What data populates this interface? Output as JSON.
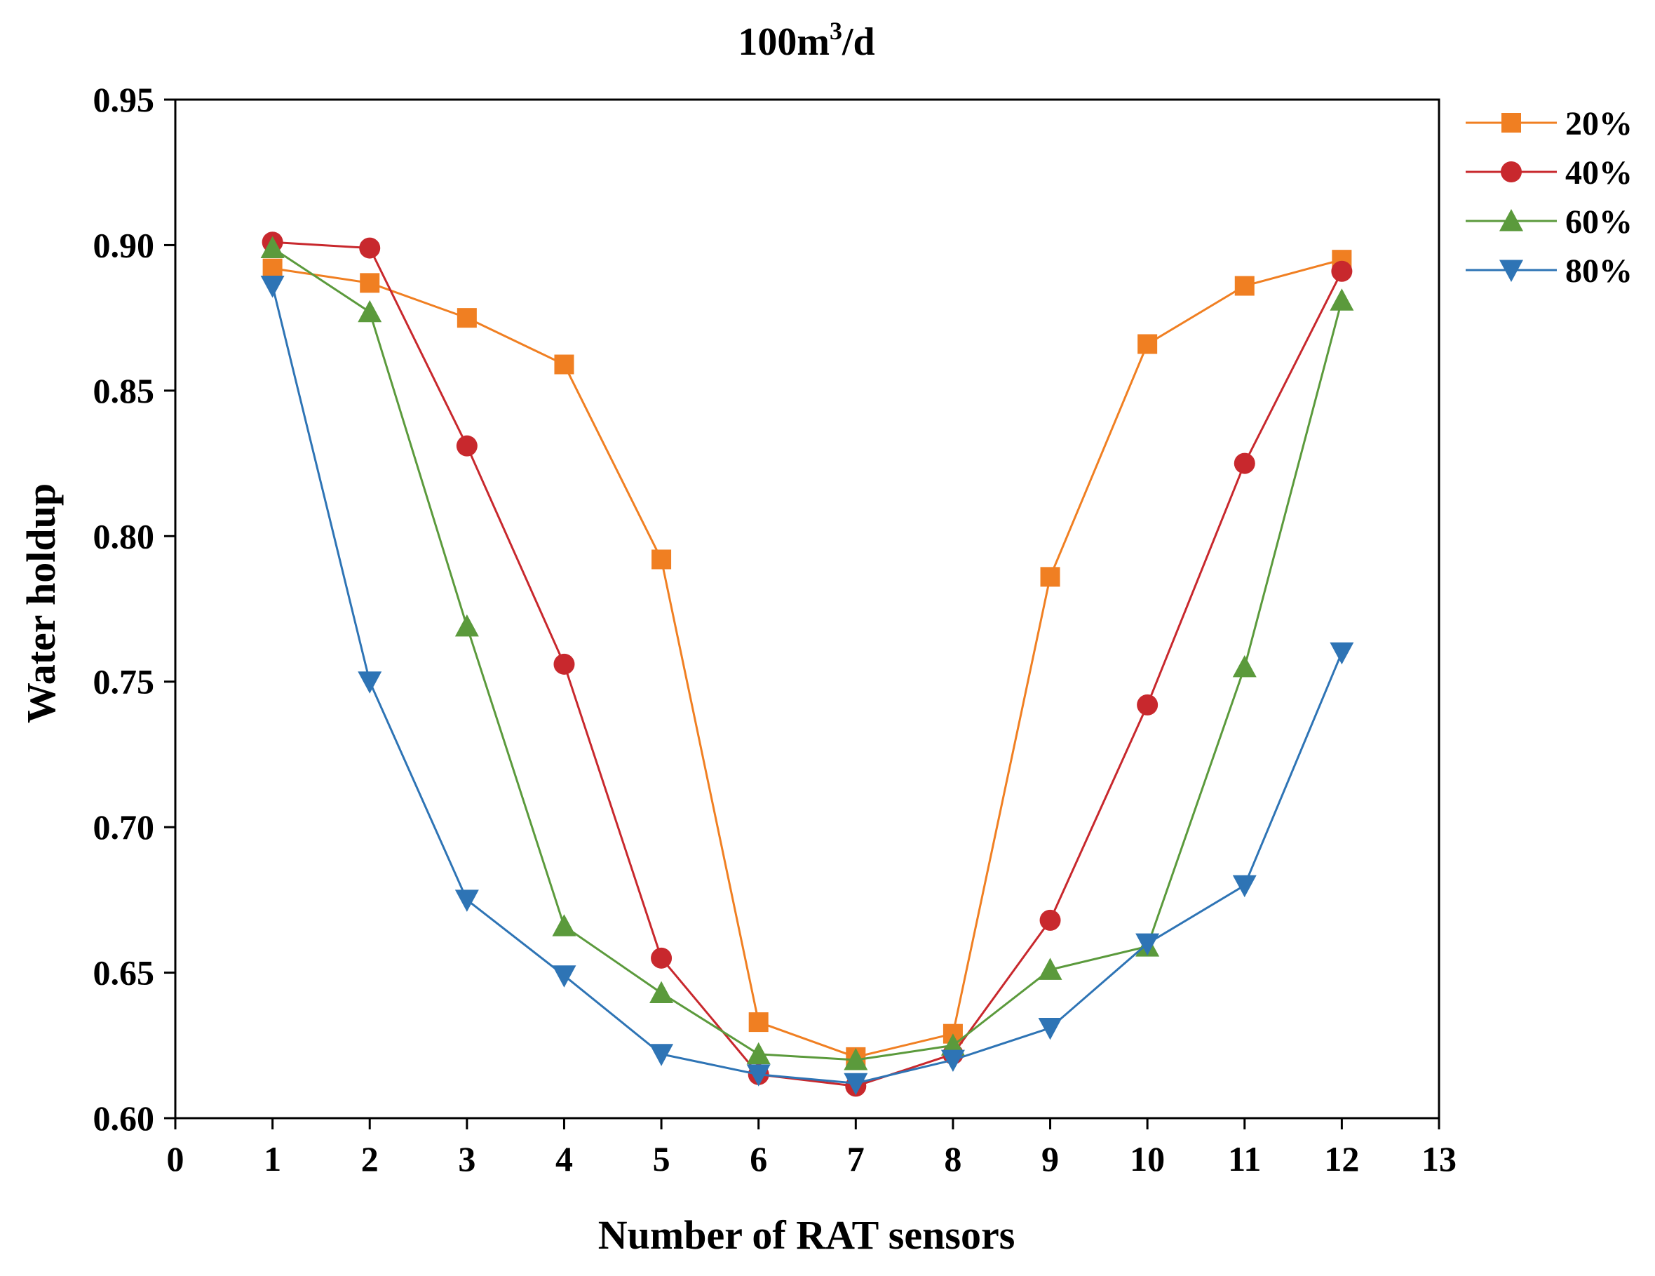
{
  "chart_data": {
    "type": "line",
    "title_base": "100m",
    "title_sup": "3",
    "title_tail": "/d",
    "xlabel": "Number of RAT sensors",
    "ylabel": "Water holdup",
    "xlim": [
      0,
      13
    ],
    "ylim": [
      0.6,
      0.95
    ],
    "xticks": [
      "0",
      "1",
      "2",
      "3",
      "4",
      "5",
      "6",
      "7",
      "8",
      "9",
      "10",
      "11",
      "12",
      "13"
    ],
    "yticks": [
      "0.60",
      "0.65",
      "0.70",
      "0.75",
      "0.80",
      "0.85",
      "0.90",
      "0.95"
    ],
    "x": [
      1,
      2,
      3,
      4,
      5,
      6,
      7,
      8,
      9,
      10,
      11,
      12
    ],
    "legend_position": "outside-top-right",
    "series": [
      {
        "name": "20%",
        "color": "#F07F22",
        "marker": "square",
        "values": [
          0.892,
          0.887,
          0.875,
          0.859,
          0.792,
          0.633,
          0.621,
          0.629,
          0.786,
          0.866,
          0.886,
          0.895
        ]
      },
      {
        "name": "40%",
        "color": "#C8282D",
        "marker": "circle",
        "values": [
          0.901,
          0.899,
          0.831,
          0.756,
          0.655,
          0.615,
          0.611,
          0.622,
          0.668,
          0.742,
          0.825,
          0.891
        ]
      },
      {
        "name": "60%",
        "color": "#5B9A3C",
        "marker": "triangle-up",
        "values": [
          0.899,
          0.877,
          0.769,
          0.666,
          0.643,
          0.622,
          0.62,
          0.625,
          0.651,
          0.659,
          0.755,
          0.881
        ]
      },
      {
        "name": "80%",
        "color": "#2E74B5",
        "marker": "triangle-down",
        "values": [
          0.886,
          0.75,
          0.675,
          0.649,
          0.622,
          0.615,
          0.612,
          0.62,
          0.631,
          0.66,
          0.68,
          0.76
        ]
      }
    ]
  }
}
